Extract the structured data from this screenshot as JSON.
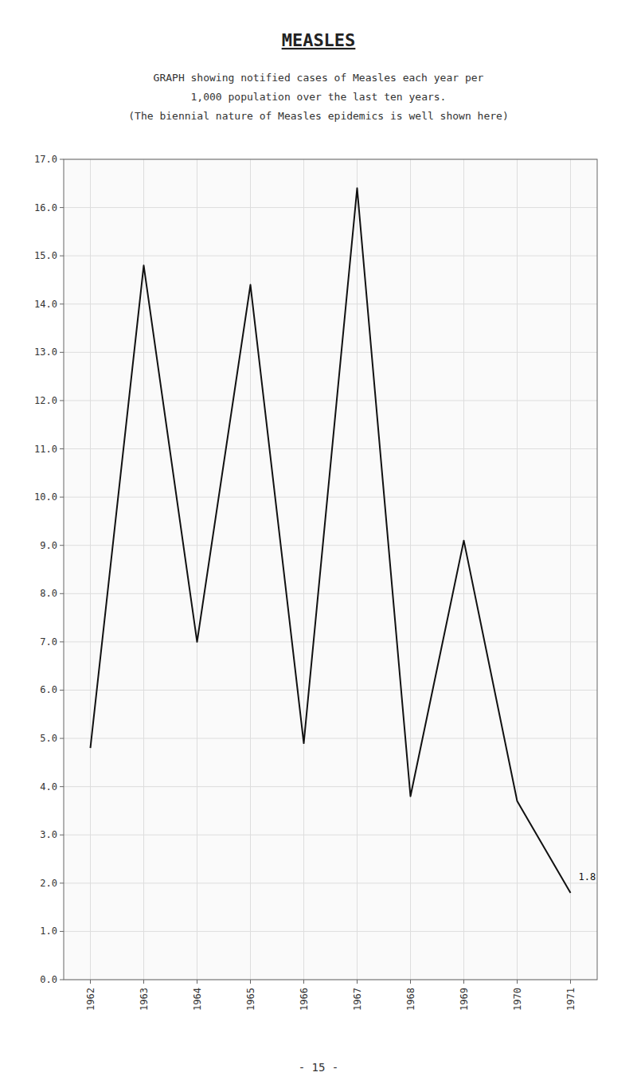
{
  "chart_data": {
    "type": "line",
    "title": "MEASLES",
    "subtitle": [
      "GRAPH showing notified cases of Measles each year per",
      "1,000 population over the last ten years.",
      "(The biennial nature of Measles epidemics is well shown here)"
    ],
    "categories": [
      "1962",
      "1963",
      "1964",
      "1965",
      "1966",
      "1967",
      "1968",
      "1969",
      "1970",
      "1971"
    ],
    "values": [
      4.8,
      14.8,
      7.0,
      14.4,
      4.9,
      16.4,
      3.8,
      9.1,
      3.7,
      1.8
    ],
    "color": "#111111",
    "ylim": [
      0.0,
      17.0
    ],
    "yticks": [
      {
        "value": 0.0,
        "label": "0.0"
      },
      {
        "value": 1.0,
        "label": "1.0"
      },
      {
        "value": 2.0,
        "label": "2.0"
      },
      {
        "value": 3.0,
        "label": "3.0"
      },
      {
        "value": 4.0,
        "label": "4.0"
      },
      {
        "value": 5.0,
        "label": "5.0"
      },
      {
        "value": 6.0,
        "label": "6.0"
      },
      {
        "value": 7.0,
        "label": "7.0"
      },
      {
        "value": 8.0,
        "label": "8.0"
      },
      {
        "value": 9.0,
        "label": "9.0"
      },
      {
        "value": 10.0,
        "label": "10.0"
      },
      {
        "value": 11.0,
        "label": "11.0"
      },
      {
        "value": 12.0,
        "label": "12.0"
      },
      {
        "value": 13.0,
        "label": "13.0"
      },
      {
        "value": 14.0,
        "label": "14.0"
      },
      {
        "value": 15.0,
        "label": "15.0"
      },
      {
        "value": 16.0,
        "label": "16.0"
      },
      {
        "value": 17.0,
        "label": "17.0"
      }
    ],
    "grid": true,
    "annotation": "1.8",
    "page_label": "- 15 -"
  }
}
